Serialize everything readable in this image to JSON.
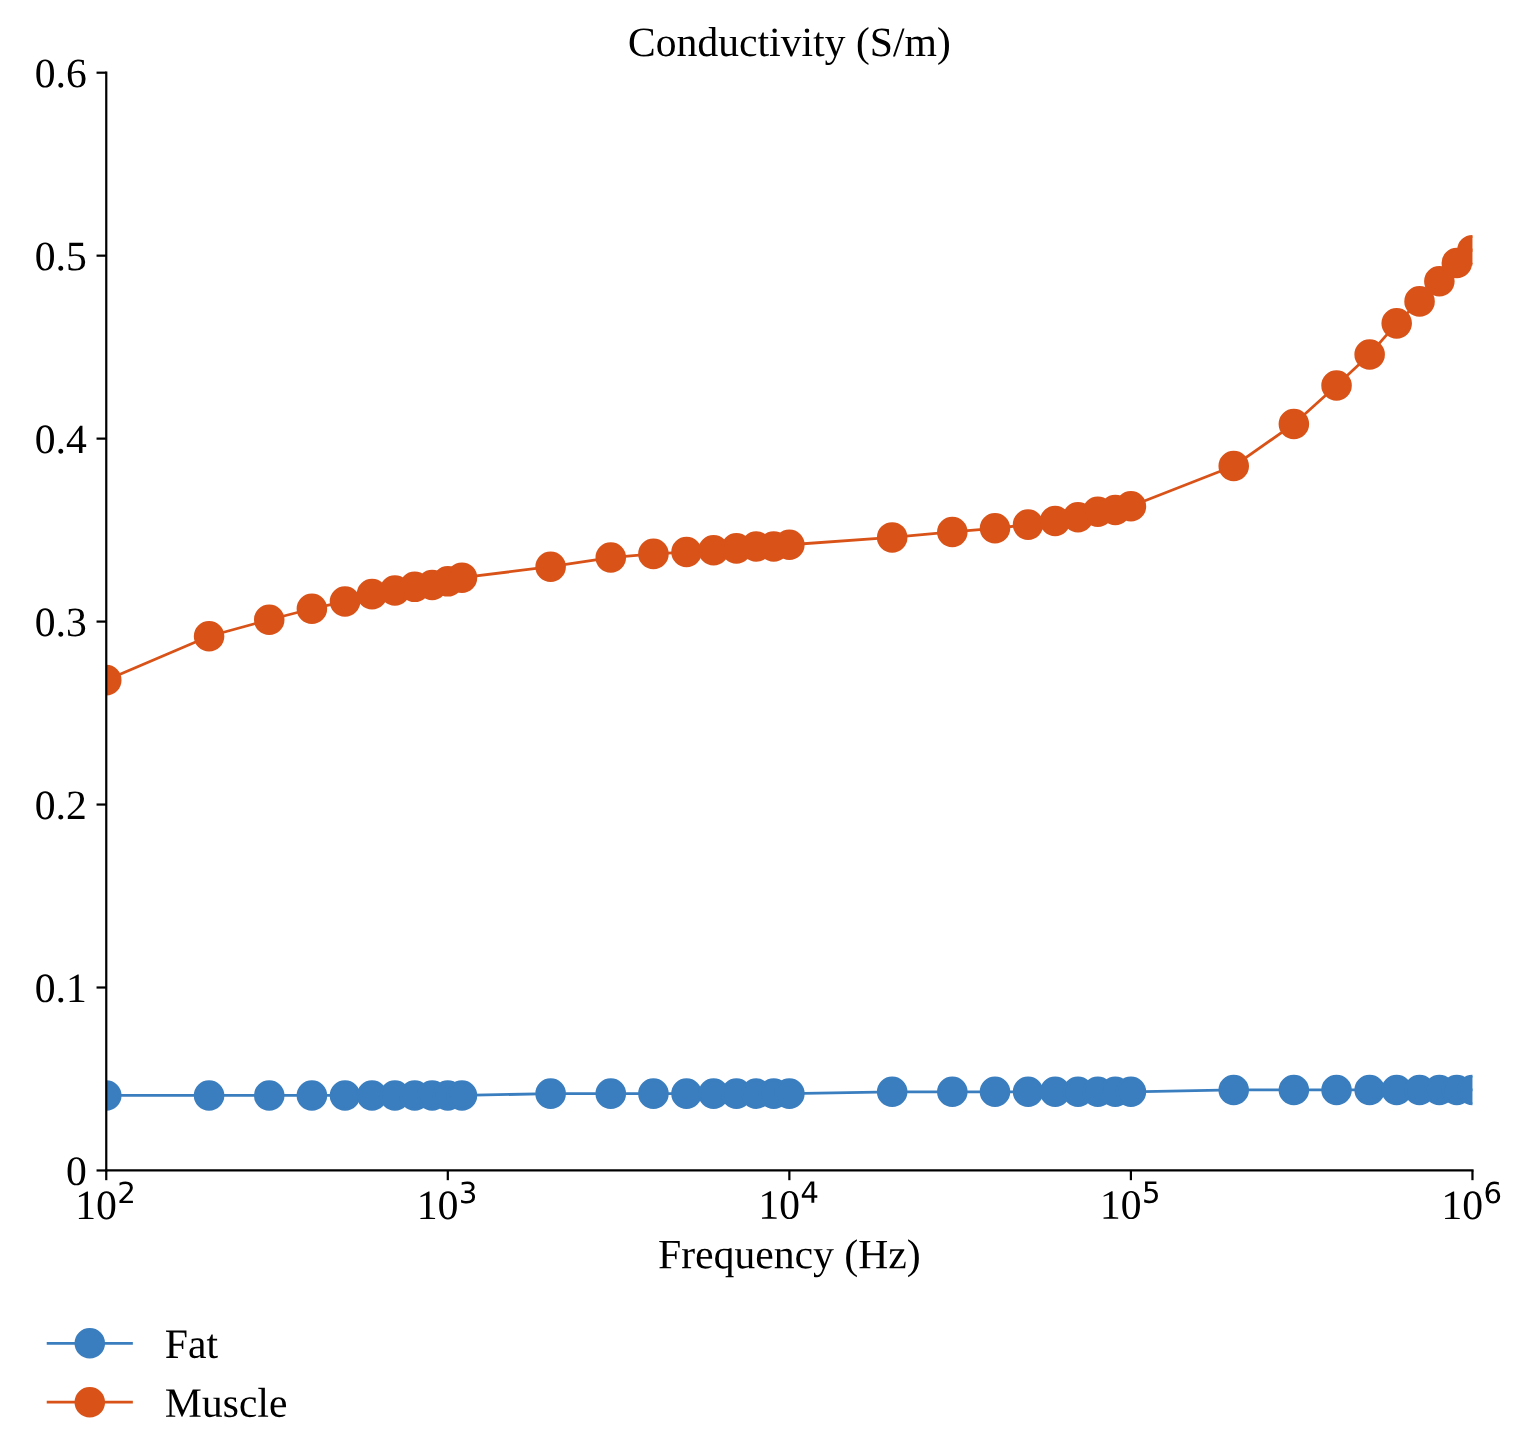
{
  "chart_data": {
    "type": "line",
    "title": "Conductivity (S/m)",
    "xlabel": "Frequency (Hz)",
    "log": "x",
    "xlim": [
      100,
      1000000
    ],
    "xticks": [
      {
        "value": 100,
        "label": "10$^{2}$"
      },
      {
        "value": 1000,
        "label": "10$^{3}$"
      },
      {
        "value": 10000,
        "label": "10$^{4}$"
      },
      {
        "value": 100000,
        "label": "10$^{5}$"
      },
      {
        "value": 1000000,
        "label": "10$^{6}$"
      }
    ],
    "ylim": [
      0,
      0.6
    ],
    "yticks": [
      0,
      0.1,
      0.2,
      0.3,
      0.4,
      0.5,
      0.6
    ],
    "grid": false,
    "legend": "bottom left",
    "marker": "circle",
    "line_style": "solid",
    "x": [
      100,
      200,
      300,
      400,
      500,
      600,
      700,
      800,
      900,
      1000,
      1100,
      2000,
      3000,
      4000,
      5000,
      6000,
      7000,
      8000,
      9000,
      10000,
      20000,
      30000,
      40000,
      50000,
      60000,
      70000,
      80000,
      90000,
      100000,
      200000,
      300000,
      400000,
      500000,
      600000,
      700000,
      800000,
      900000,
      1000000
    ],
    "series": [
      {
        "name": "Fat",
        "color": "#3a7ebf",
        "values": [
          0.041,
          0.041,
          0.041,
          0.041,
          0.041,
          0.041,
          0.041,
          0.041,
          0.041,
          0.041,
          0.041,
          0.042,
          0.042,
          0.042,
          0.042,
          0.042,
          0.042,
          0.042,
          0.042,
          0.042,
          0.043,
          0.043,
          0.043,
          0.043,
          0.043,
          0.043,
          0.043,
          0.043,
          0.043,
          0.044,
          0.044,
          0.044,
          0.044,
          0.044,
          0.044,
          0.044,
          0.044,
          0.044
        ]
      },
      {
        "name": "Muscle",
        "color": "#d95319",
        "values": [
          0.268,
          0.292,
          0.301,
          0.307,
          0.311,
          0.315,
          0.317,
          0.319,
          0.32,
          0.322,
          0.324,
          0.33,
          0.335,
          0.337,
          0.338,
          0.339,
          0.34,
          0.341,
          0.341,
          0.342,
          0.346,
          0.349,
          0.351,
          0.353,
          0.355,
          0.357,
          0.36,
          0.361,
          0.363,
          0.385,
          0.408,
          0.429,
          0.446,
          0.463,
          0.475,
          0.486,
          0.496,
          0.503
        ]
      }
    ]
  }
}
